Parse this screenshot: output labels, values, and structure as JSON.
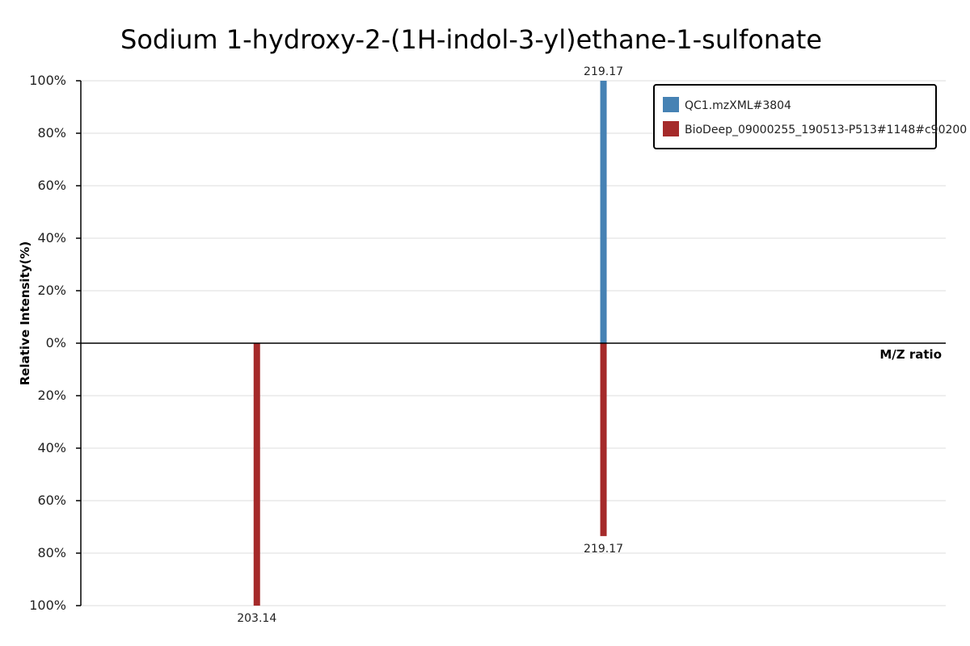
{
  "chart_data": {
    "type": "bar",
    "subtype": "mirror-spectrum",
    "title": "Sodium  1-hydroxy-2-(1H-indol-3-yl)ethane-1-sulfonate",
    "xlabel": "M/Z ratio",
    "ylabel": "Relative Intensity(%)",
    "ylim_top": [
      0,
      100
    ],
    "ylim_bottom": [
      0,
      100
    ],
    "y_ticks": [
      "100%",
      "80%",
      "60%",
      "40%",
      "20%",
      "0%",
      "20%",
      "40%",
      "60%",
      "80%",
      "100%"
    ],
    "xlim": [
      195,
      235
    ],
    "legend_position": "top-right",
    "series": [
      {
        "name": "QC1.mzXML#3804",
        "color": "#4682b4",
        "direction": "up",
        "peaks": [
          {
            "mz": 219.17,
            "intensity": 100,
            "label": "219.17"
          }
        ]
      },
      {
        "name": "BioDeep_09000255_190513-P513#1148#c90200",
        "color": "#a52a2a",
        "direction": "down",
        "peaks": [
          {
            "mz": 203.14,
            "intensity": 100,
            "label": "203.14"
          },
          {
            "mz": 219.17,
            "intensity": 73.5,
            "label": "219.17"
          }
        ]
      }
    ]
  }
}
